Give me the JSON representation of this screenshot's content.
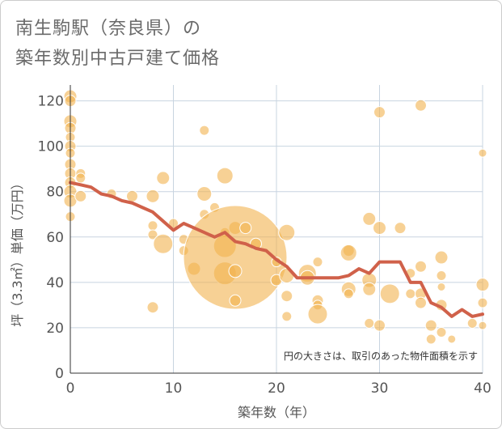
{
  "title_line1": "南生駒駅（奈良県）の",
  "title_line2": "築年数別中古戸建て価格",
  "chart_data": {
    "type": "scatter",
    "title": "南生駒駅（奈良県）の 築年数別中古戸建て価格",
    "xlabel": "築年数（年）",
    "ylabel": "坪（3.3㎡）単価（万円）",
    "xlim": [
      0,
      40
    ],
    "ylim": [
      0,
      127
    ],
    "xticks": [
      0,
      10,
      20,
      30,
      40
    ],
    "yticks": [
      0,
      20,
      40,
      60,
      80,
      100,
      120
    ],
    "grid": true,
    "note": "円の大きさは、取引のあった物件面積を示す",
    "colors": {
      "bubble": "#f2b24f",
      "line": "#d0614a"
    },
    "bubbles": [
      {
        "x": 0,
        "y": 122,
        "s": 8
      },
      {
        "x": 0,
        "y": 120,
        "s": 7
      },
      {
        "x": 0,
        "y": 111,
        "s": 8
      },
      {
        "x": 0,
        "y": 108,
        "s": 7
      },
      {
        "x": 0,
        "y": 104,
        "s": 6
      },
      {
        "x": 0,
        "y": 100,
        "s": 7
      },
      {
        "x": 0,
        "y": 97,
        "s": 6
      },
      {
        "x": 0,
        "y": 92,
        "s": 7
      },
      {
        "x": 0,
        "y": 88,
        "s": 7
      },
      {
        "x": 0,
        "y": 84,
        "s": 7
      },
      {
        "x": 0,
        "y": 80,
        "s": 8
      },
      {
        "x": 0,
        "y": 76,
        "s": 8
      },
      {
        "x": 0,
        "y": 69,
        "s": 6
      },
      {
        "x": 1,
        "y": 88,
        "s": 6
      },
      {
        "x": 1,
        "y": 86,
        "s": 6
      },
      {
        "x": 1,
        "y": 78,
        "s": 7
      },
      {
        "x": 4,
        "y": 79,
        "s": 6
      },
      {
        "x": 6,
        "y": 78,
        "s": 7
      },
      {
        "x": 8,
        "y": 78,
        "s": 8
      },
      {
        "x": 8,
        "y": 65,
        "s": 6
      },
      {
        "x": 8,
        "y": 61,
        "s": 6
      },
      {
        "x": 8,
        "y": 29,
        "s": 7
      },
      {
        "x": 9,
        "y": 86,
        "s": 8
      },
      {
        "x": 9,
        "y": 57,
        "s": 12
      },
      {
        "x": 10,
        "y": 66,
        "s": 6
      },
      {
        "x": 11,
        "y": 59,
        "s": 6
      },
      {
        "x": 11,
        "y": 54,
        "s": 6
      },
      {
        "x": 12,
        "y": 46,
        "s": 8
      },
      {
        "x": 13,
        "y": 107,
        "s": 6
      },
      {
        "x": 13,
        "y": 79,
        "s": 9
      },
      {
        "x": 13,
        "y": 70,
        "s": 6
      },
      {
        "x": 14,
        "y": 73,
        "s": 6
      },
      {
        "x": 15,
        "y": 87,
        "s": 10
      },
      {
        "x": 15,
        "y": 62,
        "s": 6
      },
      {
        "x": 15,
        "y": 56,
        "s": 14
      },
      {
        "x": 15,
        "y": 44,
        "s": 14
      },
      {
        "x": 16,
        "y": 64,
        "s": 8
      },
      {
        "x": 16,
        "y": 51,
        "s": 64
      },
      {
        "x": 16,
        "y": 45,
        "s": 8
      },
      {
        "x": 16,
        "y": 32,
        "s": 7
      },
      {
        "x": 17,
        "y": 64,
        "s": 7
      },
      {
        "x": 18,
        "y": 57,
        "s": 7
      },
      {
        "x": 20,
        "y": 49,
        "s": 6
      },
      {
        "x": 20,
        "y": 41,
        "s": 7
      },
      {
        "x": 21,
        "y": 62,
        "s": 10
      },
      {
        "x": 21,
        "y": 43,
        "s": 9
      },
      {
        "x": 21,
        "y": 34,
        "s": 7
      },
      {
        "x": 21,
        "y": 25,
        "s": 6
      },
      {
        "x": 23,
        "y": 44,
        "s": 11
      },
      {
        "x": 23,
        "y": 42,
        "s": 9
      },
      {
        "x": 24,
        "y": 49,
        "s": 6
      },
      {
        "x": 24,
        "y": 32,
        "s": 7
      },
      {
        "x": 24,
        "y": 30,
        "s": 6
      },
      {
        "x": 24,
        "y": 26,
        "s": 12
      },
      {
        "x": 27,
        "y": 54,
        "s": 7
      },
      {
        "x": 27,
        "y": 53,
        "s": 10
      },
      {
        "x": 27,
        "y": 37,
        "s": 9
      },
      {
        "x": 27,
        "y": 35,
        "s": 6
      },
      {
        "x": 29,
        "y": 68,
        "s": 8
      },
      {
        "x": 29,
        "y": 41,
        "s": 9
      },
      {
        "x": 29,
        "y": 37,
        "s": 8
      },
      {
        "x": 29,
        "y": 22,
        "s": 6
      },
      {
        "x": 30,
        "y": 115,
        "s": 7
      },
      {
        "x": 30,
        "y": 64,
        "s": 8
      },
      {
        "x": 30,
        "y": 21,
        "s": 7
      },
      {
        "x": 31,
        "y": 35,
        "s": 12
      },
      {
        "x": 32,
        "y": 64,
        "s": 7
      },
      {
        "x": 33,
        "y": 44,
        "s": 6
      },
      {
        "x": 33,
        "y": 35,
        "s": 6
      },
      {
        "x": 34,
        "y": 118,
        "s": 7
      },
      {
        "x": 34,
        "y": 47,
        "s": 7
      },
      {
        "x": 34,
        "y": 35,
        "s": 7
      },
      {
        "x": 34,
        "y": 31,
        "s": 7
      },
      {
        "x": 35,
        "y": 21,
        "s": 7
      },
      {
        "x": 35,
        "y": 15,
        "s": 6
      },
      {
        "x": 36,
        "y": 51,
        "s": 8
      },
      {
        "x": 36,
        "y": 43,
        "s": 6
      },
      {
        "x": 36,
        "y": 38,
        "s": 5
      },
      {
        "x": 36,
        "y": 30,
        "s": 7
      },
      {
        "x": 36,
        "y": 18,
        "s": 6
      },
      {
        "x": 37,
        "y": 15,
        "s": 5
      },
      {
        "x": 39,
        "y": 22,
        "s": 6
      },
      {
        "x": 40,
        "y": 97,
        "s": 5
      },
      {
        "x": 40,
        "y": 39,
        "s": 8
      },
      {
        "x": 40,
        "y": 31,
        "s": 6
      },
      {
        "x": 40,
        "y": 21,
        "s": 5
      }
    ],
    "trend": {
      "x": [
        0,
        1,
        2,
        3,
        4,
        5,
        6,
        7,
        8,
        9,
        10,
        11,
        12,
        13,
        14,
        15,
        16,
        17,
        18,
        19,
        20,
        21,
        22,
        23,
        24,
        25,
        26,
        27,
        28,
        29,
        30,
        31,
        32,
        33,
        34,
        35,
        36,
        37,
        38,
        39,
        40
      ],
      "y": [
        84,
        83,
        82,
        79,
        78,
        76,
        75,
        73,
        71,
        67,
        63,
        66,
        64,
        62,
        60,
        62,
        58,
        57,
        55,
        54,
        50,
        47,
        42,
        42,
        42,
        42,
        42,
        43,
        46,
        44,
        49,
        49,
        49,
        40,
        40,
        31,
        29,
        25,
        28,
        25,
        26
      ]
    }
  }
}
